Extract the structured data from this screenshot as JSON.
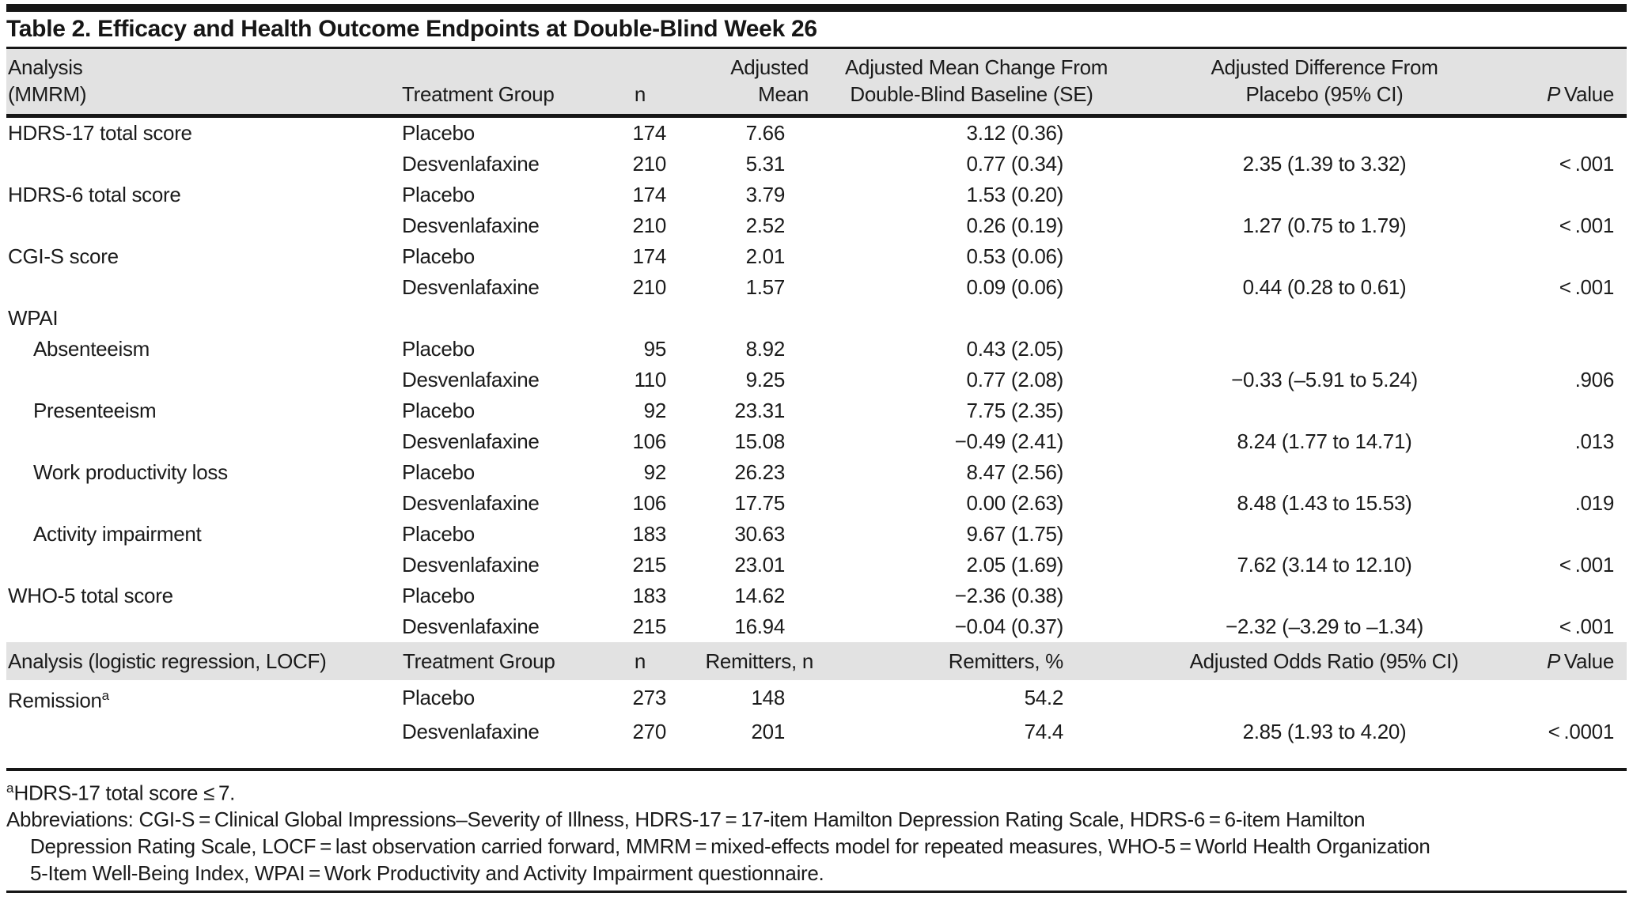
{
  "title": "Table 2. Efficacy and Health Outcome Endpoints at Double-Blind Week 26",
  "colors": {
    "rule": "#161616",
    "header_bg": "#e2e2e2",
    "text": "#1b1b1b"
  },
  "header_mmrm": {
    "col1": [
      "Analysis",
      "(MMRM)"
    ],
    "col2": "Treatment Group",
    "col3": "n",
    "col4": [
      "Adjusted",
      "Mean"
    ],
    "col5": [
      "Adjusted Mean Change From",
      "Double-Blind Baseline (SE)"
    ],
    "col6": [
      "Adjusted Difference From",
      "Placebo (95% CI)"
    ],
    "col7_italic": "P",
    "col7_rest": " Value"
  },
  "table_mmrm": {
    "rows": [
      {
        "label": "HDRS-17 total score",
        "indent": false,
        "cells": [
          "Placebo",
          "174",
          "7.66",
          "3.12 (0.36)",
          "",
          ""
        ]
      },
      {
        "label": "",
        "indent": false,
        "cells": [
          "Desvenlafaxine",
          "210",
          "5.31",
          "0.77 (0.34)",
          "2.35 (1.39 to 3.32)",
          "< .001"
        ]
      },
      {
        "label": "HDRS-6 total score",
        "indent": false,
        "cells": [
          "Placebo",
          "174",
          "3.79",
          "1.53 (0.20)",
          "",
          ""
        ]
      },
      {
        "label": "",
        "indent": false,
        "cells": [
          "Desvenlafaxine",
          "210",
          "2.52",
          "0.26 (0.19)",
          "1.27 (0.75 to 1.79)",
          "< .001"
        ]
      },
      {
        "label": "CGI-S score",
        "indent": false,
        "cells": [
          "Placebo",
          "174",
          "2.01",
          "0.53 (0.06)",
          "",
          ""
        ]
      },
      {
        "label": "",
        "indent": false,
        "cells": [
          "Desvenlafaxine",
          "210",
          "1.57",
          "0.09 (0.06)",
          "0.44 (0.28 to 0.61)",
          "< .001"
        ]
      },
      {
        "label": "WPAI",
        "indent": false,
        "cells": [
          "",
          "",
          "",
          "",
          "",
          ""
        ]
      },
      {
        "label": "Absenteeism",
        "indent": true,
        "cells": [
          "Placebo",
          "95",
          "8.92",
          "0.43 (2.05)",
          "",
          ""
        ]
      },
      {
        "label": "",
        "indent": false,
        "cells": [
          "Desvenlafaxine",
          "110",
          "9.25",
          "0.77 (2.08)",
          "−0.33 (–5.91 to 5.24)",
          ".906"
        ]
      },
      {
        "label": "Presenteeism",
        "indent": true,
        "cells": [
          "Placebo",
          "92",
          "23.31",
          "7.75 (2.35)",
          "",
          ""
        ]
      },
      {
        "label": "",
        "indent": false,
        "cells": [
          "Desvenlafaxine",
          "106",
          "15.08",
          "−0.49 (2.41)",
          "8.24 (1.77 to 14.71)",
          ".013"
        ]
      },
      {
        "label": "Work productivity loss",
        "indent": true,
        "cells": [
          "Placebo",
          "92",
          "26.23",
          "8.47 (2.56)",
          "",
          ""
        ]
      },
      {
        "label": "",
        "indent": false,
        "cells": [
          "Desvenlafaxine",
          "106",
          "17.75",
          "0.00 (2.63)",
          "8.48 (1.43 to 15.53)",
          ".019"
        ]
      },
      {
        "label": "Activity impairment",
        "indent": true,
        "cells": [
          "Placebo",
          "183",
          "30.63",
          "9.67 (1.75)",
          "",
          ""
        ]
      },
      {
        "label": "",
        "indent": false,
        "cells": [
          "Desvenlafaxine",
          "215",
          "23.01",
          "2.05 (1.69)",
          "7.62 (3.14 to 12.10)",
          "< .001"
        ]
      },
      {
        "label": "WHO-5 total score",
        "indent": false,
        "cells": [
          "Placebo",
          "183",
          "14.62",
          "−2.36 (0.38)",
          "",
          ""
        ]
      },
      {
        "label": "",
        "indent": false,
        "cells": [
          "Desvenlafaxine",
          "215",
          "16.94",
          "−0.04 (0.37)",
          "−2.32 (–3.29 to –1.34)",
          "< .001"
        ]
      }
    ]
  },
  "header_logistic": {
    "col1": "Analysis (logistic regression, LOCF)",
    "col2": "Treatment Group",
    "col3": "n",
    "col4": "Remitters, n",
    "col5": "Remitters, %",
    "col6": "Adjusted Odds Ratio (95% CI)",
    "col7_italic": "P",
    "col7_rest": " Value"
  },
  "table_logistic": {
    "rows": [
      {
        "label": "Remission",
        "sup": "a",
        "indent": false,
        "cells": [
          "Placebo",
          "273",
          "148",
          "54.2",
          "",
          ""
        ]
      },
      {
        "label": "",
        "indent": false,
        "cells": [
          "Desvenlafaxine",
          "270",
          "201",
          "74.4",
          "2.85 (1.93 to 4.20)",
          "< .0001"
        ]
      }
    ]
  },
  "footnotes": {
    "marker": "a",
    "note": "HDRS-17 total score ≤ 7.",
    "abbrev_lines": [
      "Abbreviations: CGI-S = Clinical Global Impressions–Severity of Illness, HDRS-17 = 17-item Hamilton Depression Rating Scale, HDRS-6 = 6-item Hamilton",
      "Depression Rating Scale, LOCF = last observation carried forward, MMRM = mixed-effects model for repeated measures, WHO-5 = World Health Organization",
      "5-Item Well-Being Index, WPAI = Work Productivity and Activity Impairment questionnaire."
    ]
  }
}
